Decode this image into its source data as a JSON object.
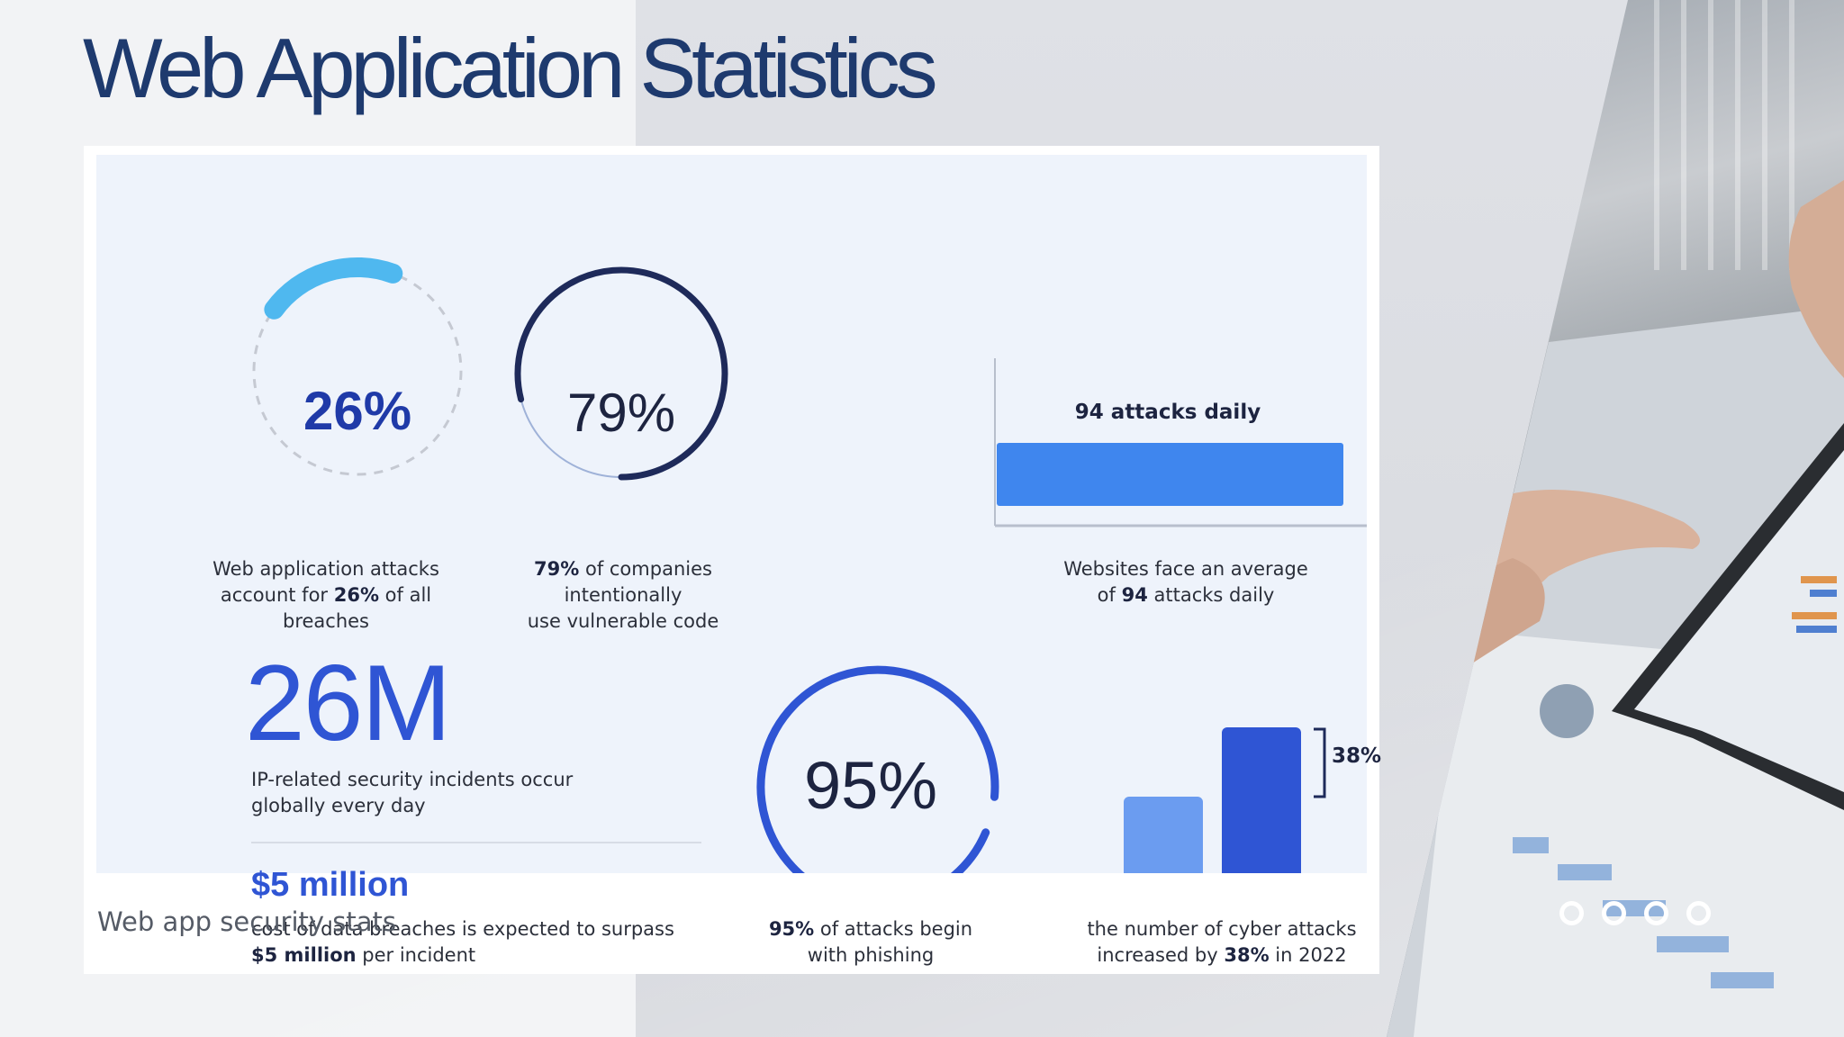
{
  "slide": {
    "title": "Web Application Statistics",
    "caption": "Web app security stats"
  },
  "stats": {
    "s1": {
      "value": "26%",
      "percent": 26,
      "pre": "Web application attacks",
      "line2a": "account for ",
      "bold": "26%",
      "line2b": " of all breaches"
    },
    "s2": {
      "value": "79%",
      "percent": 79,
      "bold": "79%",
      "line1": " of companies intentionally",
      "line2": "use vulnerable code"
    },
    "s3": {
      "bar_label": "94 attacks daily",
      "line1": "Websites face an average",
      "line2a": "of ",
      "bold": "94",
      "line2b": " attacks daily"
    },
    "s4": {
      "value": "26M",
      "line1": "IP-related security incidents occur",
      "line2": "globally every day"
    },
    "s5": {
      "value": "$5 million",
      "line1": "cost of data breaches is expected to surpass",
      "bold": "$5 million",
      "line2b": " per incident"
    },
    "s6": {
      "value": "95%",
      "percent": 95,
      "bold": "95%",
      "line1": " of attacks begin",
      "line2": "with phishing"
    },
    "s7": {
      "increase_label": "38%",
      "line1": "the number of cyber attacks",
      "line2a": "increased by ",
      "bold": "38%",
      "line2b": " in 2022"
    }
  },
  "colors": {
    "navy": "#1e2a5a",
    "blue": "#2f55d4",
    "light_blue": "#4fb8ef",
    "bar_blue": "#3f86ee",
    "bar_light": "#6b9cf0"
  },
  "carousel": {
    "dots": [
      "slide-1",
      "slide-2",
      "slide-3",
      "slide-4"
    ]
  }
}
